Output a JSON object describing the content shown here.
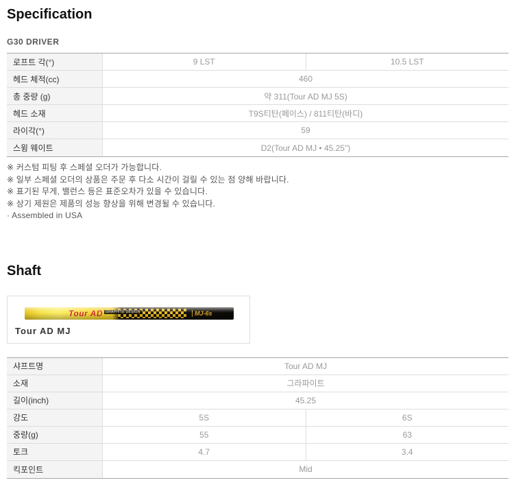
{
  "page": {
    "spec_heading": "Specification",
    "model_label": "G30 DRIVER",
    "shaft_heading": "Shaft"
  },
  "spec_table": {
    "rows": [
      {
        "label": "로프트 각(°)",
        "values": [
          "9 LST",
          "10.5 LST"
        ]
      },
      {
        "label": "헤드 체적(cc)",
        "values": [
          "460"
        ]
      },
      {
        "label": "총 중량 (g)",
        "values": [
          "약 311(Tour AD MJ 5S)"
        ]
      },
      {
        "label": "헤드 소재",
        "values": [
          "T9S티탄(페이스) / 811티탄(바디)"
        ]
      },
      {
        "label": "라이각(°)",
        "values": [
          "59"
        ]
      },
      {
        "label": "스윙 웨이트",
        "values": [
          "D2(Tour AD MJ • 45.25\")"
        ]
      }
    ]
  },
  "notes": [
    "※ 커스텀 피팅 후 스페셜 오더가 가능합니다.",
    "※ 일부 스페셜 오더의 상품은 주문 후 다소 시간이 걸릴 수 있는 점 양해 바랍니다.",
    "※ 표기된 무게, 밸런스 등은 표준오차가 있을 수 있습니다.",
    "※ 상기 제원은 제품의 성능 향상을 위해 변경될 수 있습니다.",
    "· Assembled in USA"
  ],
  "shaft": {
    "image_caption": "Tour AD MJ",
    "graphic": {
      "brand_text": "Tour AD",
      "design_text": "GRAPHITE DESIGN",
      "model_text": "MJ-6s"
    },
    "colors": {
      "shaft_yellow": "#f5d932",
      "brand_red": "#d42b1e",
      "shaft_black": "#111111",
      "model_gold": "#d8a52a"
    }
  },
  "shaft_table": {
    "rows": [
      {
        "label": "샤프트명",
        "values": [
          "Tour AD MJ"
        ]
      },
      {
        "label": "소재",
        "values": [
          "그라파이트"
        ]
      },
      {
        "label": "길이(inch)",
        "values": [
          "45.25"
        ]
      },
      {
        "label": "강도",
        "values": [
          "5S",
          "6S"
        ]
      },
      {
        "label": "중량(g)",
        "values": [
          "55",
          "63"
        ]
      },
      {
        "label": "토크",
        "values": [
          "4.7",
          "3.4"
        ]
      },
      {
        "label": "킥포인트",
        "values": [
          "Mid"
        ]
      }
    ]
  },
  "colors": {
    "label_text": "#333333",
    "value_text": "#999999",
    "note_text": "#555555",
    "table_border_outer": "#a6a6a6",
    "table_border_inner": "#dddddd",
    "label_column_bg": "#f4f4f4"
  }
}
